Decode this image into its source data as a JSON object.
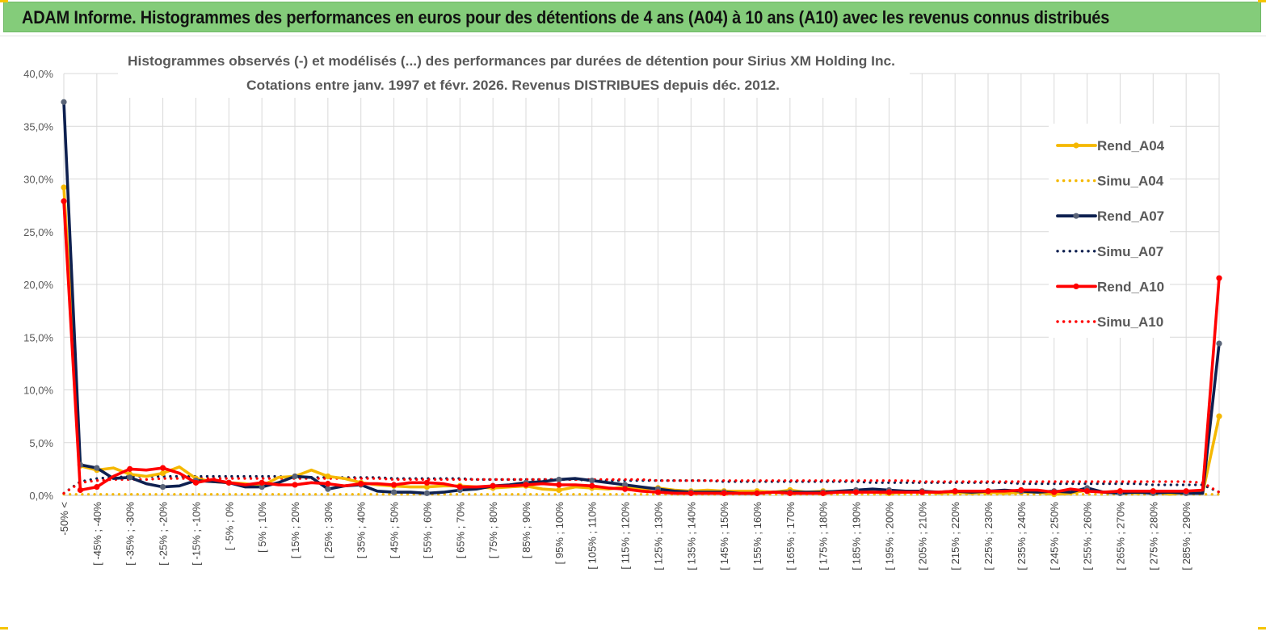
{
  "header": {
    "title": "ADAM Informe. Histogrammes des performances en euros pour des détentions de 4 ans (A04) à 10 ans (A10) avec les revenus connus distribués"
  },
  "colors": {
    "header_bg": "#84cc7a",
    "A04": "#f5b800",
    "A07": "#0e2050",
    "A10": "#ff0000",
    "A07_marker": "#5a6478",
    "grid": "#d9d9d9"
  },
  "chart_data": {
    "type": "line",
    "title": "Histogrammes observés (-) et modélisés (...) des performances par durées de détention pour Sirius XM Holding Inc.",
    "subtitle": "Cotations entre janv. 1997 et févr. 2026. Revenus DISTRIBUES depuis déc. 2012.",
    "xlabel": "",
    "ylabel": "",
    "ylim": [
      0,
      0.4
    ],
    "y_ticks": [
      0,
      0.05,
      0.1,
      0.15,
      0.2,
      0.25,
      0.3,
      0.35,
      0.4
    ],
    "y_tick_labels": [
      "0,0%",
      "5,0%",
      "10,0%",
      "15,0%",
      "20,0%",
      "25,0%",
      "30,0%",
      "35,0%",
      "40,0%"
    ],
    "grid": true,
    "legend_position": "right",
    "x_tick_labels": [
      "-50% <",
      "[ -45% ; -40%",
      "[ -35% ; -30%",
      "[ -25% ; -20%",
      "[ -15% ; -10%",
      "[ -5% ; 0%",
      "[ 5% ; 10%",
      "[ 15% ; 20%",
      "[ 25% ; 30%",
      "[ 35% ; 40%",
      "[ 45% ; 50%",
      "[ 55% ; 60%",
      "[ 65% ; 70%",
      "[ 75% ; 80%",
      "[ 85% ; 90%",
      "[ 95% ; 100%",
      "[ 105% ; 110%",
      "[ 115% ; 120%",
      "[ 125% ; 130%",
      "[ 135% ; 140%",
      "[ 145% ; 150%",
      "[ 155% ; 160%",
      "[ 165% ; 170%",
      "[ 175% ; 180%",
      "[ 185% ; 190%",
      "[ 195% ; 200%",
      "[ 205% ; 210%",
      "[ 215% ; 220%",
      "[ 225% ; 230%",
      "[ 235% ; 240%",
      "[ 245% ; 250%",
      "[ 255% ; 260%",
      "[ 265% ; 270%",
      "[ 275% ; 280%",
      "[ 285% ; 290%"
    ],
    "series": [
      {
        "name": "Rend_A04",
        "style": "solid",
        "color": "#f5b800",
        "values": [
          0.292,
          0.028,
          0.024,
          0.026,
          0.02,
          0.018,
          0.021,
          0.027,
          0.016,
          0.013,
          0.012,
          0.011,
          0.009,
          0.017,
          0.018,
          0.024,
          0.018,
          0.016,
          0.012,
          0.01,
          0.009,
          0.008,
          0.008,
          0.009,
          0.009,
          0.008,
          0.007,
          0.008,
          0.009,
          0.006,
          0.005,
          0.008,
          0.007,
          0.006,
          0.008,
          0.006,
          0.007,
          0.005,
          0.004,
          0.005,
          0.004,
          0.004,
          0.004,
          0.003,
          0.005,
          0.003,
          0.004,
          0.003,
          0.004,
          0.003,
          0.002,
          0.003,
          0.004,
          0.002,
          0.003,
          0.002,
          0.003,
          0.002,
          0.003,
          0.003,
          0.001,
          0.002,
          0.005,
          0.003,
          0.004,
          0.002,
          0.004,
          0.001,
          0.003,
          0.002,
          0.075
        ]
      },
      {
        "name": "Simu_A04",
        "style": "dotted",
        "color": "#f5b800",
        "values": [
          0.001,
          0.001,
          0.001,
          0.001,
          0.001,
          0.001,
          0.001,
          0.001,
          0.001,
          0.001,
          0.001,
          0.001,
          0.001,
          0.001,
          0.001,
          0.001,
          0.001,
          0.001,
          0.001,
          0.001,
          0.001,
          0.001,
          0.001,
          0.001,
          0.001,
          0.001,
          0.001,
          0.001,
          0.001,
          0.001,
          0.001,
          0.001,
          0.001,
          0.001,
          0.001,
          0.001,
          0.001,
          0.001,
          0.001,
          0.001,
          0.001,
          0.001,
          0.001,
          0.001,
          0.001,
          0.001,
          0.001,
          0.001,
          0.001,
          0.001,
          0.001,
          0.001,
          0.001,
          0.001,
          0.001,
          0.001,
          0.001,
          0.001,
          0.001,
          0.001,
          0.001,
          0.001,
          0.001,
          0.001,
          0.001,
          0.001,
          0.001,
          0.001,
          0.001,
          0.001,
          0.001
        ]
      },
      {
        "name": "Rend_A07",
        "style": "solid",
        "color": "#0e2050",
        "values": [
          0.373,
          0.029,
          0.026,
          0.016,
          0.017,
          0.011,
          0.008,
          0.009,
          0.014,
          0.013,
          0.012,
          0.008,
          0.008,
          0.012,
          0.018,
          0.017,
          0.006,
          0.009,
          0.01,
          0.004,
          0.003,
          0.003,
          0.002,
          0.003,
          0.005,
          0.006,
          0.009,
          0.01,
          0.012,
          0.013,
          0.015,
          0.016,
          0.014,
          0.012,
          0.01,
          0.008,
          0.006,
          0.004,
          0.003,
          0.003,
          0.003,
          0.002,
          0.002,
          0.003,
          0.003,
          0.003,
          0.003,
          0.004,
          0.005,
          0.006,
          0.005,
          0.004,
          0.004,
          0.003,
          0.004,
          0.003,
          0.004,
          0.005,
          0.004,
          0.003,
          0.004,
          0.003,
          0.007,
          0.003,
          0.002,
          0.003,
          0.002,
          0.003,
          0.002,
          0.002,
          0.144
        ]
      },
      {
        "name": "Simu_A07",
        "style": "dotted",
        "color": "#0e2050",
        "values": [
          0.002,
          0.013,
          0.016,
          0.017,
          0.018,
          0.018,
          0.018,
          0.018,
          0.018,
          0.018,
          0.018,
          0.018,
          0.018,
          0.018,
          0.017,
          0.017,
          0.017,
          0.017,
          0.017,
          0.017,
          0.016,
          0.016,
          0.016,
          0.016,
          0.016,
          0.015,
          0.015,
          0.015,
          0.015,
          0.015,
          0.015,
          0.015,
          0.014,
          0.014,
          0.014,
          0.014,
          0.014,
          0.014,
          0.014,
          0.014,
          0.013,
          0.013,
          0.013,
          0.013,
          0.013,
          0.013,
          0.013,
          0.013,
          0.013,
          0.012,
          0.012,
          0.012,
          0.012,
          0.012,
          0.012,
          0.012,
          0.012,
          0.012,
          0.011,
          0.011,
          0.011,
          0.011,
          0.011,
          0.011,
          0.011,
          0.011,
          0.01,
          0.01,
          0.01,
          0.01,
          0.003
        ]
      },
      {
        "name": "Rend_A10",
        "style": "solid",
        "color": "#ff0000",
        "values": [
          0.279,
          0.005,
          0.008,
          0.018,
          0.025,
          0.024,
          0.026,
          0.021,
          0.012,
          0.015,
          0.012,
          0.01,
          0.012,
          0.01,
          0.01,
          0.012,
          0.011,
          0.009,
          0.011,
          0.011,
          0.01,
          0.012,
          0.012,
          0.011,
          0.008,
          0.008,
          0.009,
          0.009,
          0.01,
          0.011,
          0.01,
          0.01,
          0.009,
          0.007,
          0.006,
          0.004,
          0.003,
          0.002,
          0.002,
          0.002,
          0.002,
          0.002,
          0.002,
          0.003,
          0.002,
          0.002,
          0.002,
          0.003,
          0.003,
          0.003,
          0.003,
          0.003,
          0.003,
          0.003,
          0.004,
          0.004,
          0.004,
          0.004,
          0.005,
          0.005,
          0.003,
          0.006,
          0.004,
          0.003,
          0.004,
          0.004,
          0.004,
          0.004,
          0.004,
          0.005,
          0.206
        ]
      },
      {
        "name": "Simu_A10",
        "style": "dotted",
        "color": "#ff0000",
        "values": [
          0.002,
          0.012,
          0.014,
          0.015,
          0.015,
          0.015,
          0.016,
          0.016,
          0.016,
          0.016,
          0.016,
          0.016,
          0.016,
          0.016,
          0.016,
          0.016,
          0.016,
          0.016,
          0.016,
          0.016,
          0.015,
          0.015,
          0.015,
          0.015,
          0.015,
          0.015,
          0.015,
          0.015,
          0.015,
          0.015,
          0.015,
          0.015,
          0.015,
          0.015,
          0.015,
          0.015,
          0.014,
          0.014,
          0.014,
          0.014,
          0.014,
          0.014,
          0.014,
          0.014,
          0.014,
          0.014,
          0.014,
          0.014,
          0.014,
          0.014,
          0.014,
          0.014,
          0.013,
          0.013,
          0.013,
          0.013,
          0.013,
          0.013,
          0.013,
          0.013,
          0.013,
          0.013,
          0.013,
          0.013,
          0.013,
          0.013,
          0.013,
          0.013,
          0.013,
          0.012,
          0.003
        ]
      }
    ]
  }
}
